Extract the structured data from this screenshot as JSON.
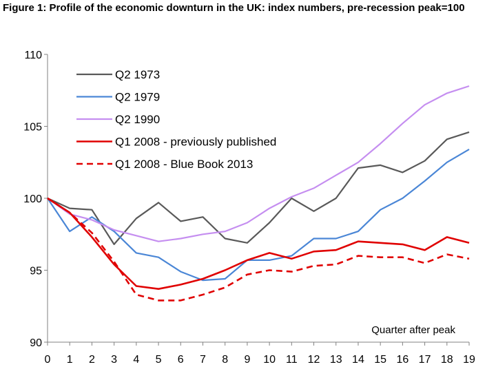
{
  "figure_title": "Figure 1: Profile of the economic downturn in the UK: index numbers, pre-recession peak=100",
  "chart_data": {
    "type": "line",
    "title": "Figure 1: Profile of the economic downturn in the UK: index numbers, pre-recession peak=100",
    "xlabel": "Quarter after peak",
    "ylabel": "",
    "x": [
      0,
      1,
      2,
      3,
      4,
      5,
      6,
      7,
      8,
      9,
      10,
      11,
      12,
      13,
      14,
      15,
      16,
      17,
      18,
      19
    ],
    "xlim": [
      0,
      19
    ],
    "ylim": [
      90,
      110
    ],
    "yticks": [
      90,
      95,
      100,
      105,
      110
    ],
    "grid": false,
    "legend_position": "top-left",
    "annotation": "Quarter after peak",
    "series": [
      {
        "name": "Q2 1973",
        "color": "#595959",
        "dash": "solid",
        "values": [
          100,
          99.3,
          99.2,
          96.8,
          98.6,
          99.7,
          98.4,
          98.7,
          97.2,
          96.9,
          98.3,
          100.0,
          99.1,
          100.0,
          102.1,
          102.3,
          101.8,
          102.6,
          104.1,
          104.6
        ]
      },
      {
        "name": "Q2 1979",
        "color": "#4a86d6",
        "dash": "solid",
        "values": [
          100,
          97.7,
          98.7,
          97.7,
          96.2,
          95.9,
          94.9,
          94.3,
          94.4,
          95.7,
          95.7,
          96.0,
          97.2,
          97.2,
          97.7,
          99.2,
          100.0,
          101.2,
          102.5,
          103.4
        ]
      },
      {
        "name": "Q2 1990",
        "color": "#c58ef0",
        "dash": "solid",
        "values": [
          100,
          98.9,
          98.5,
          97.8,
          97.4,
          97.0,
          97.2,
          97.5,
          97.7,
          98.3,
          99.3,
          100.1,
          100.7,
          101.6,
          102.5,
          103.8,
          105.2,
          106.5,
          107.3,
          107.8
        ]
      },
      {
        "name": "Q1 2008  - previously published",
        "color": "#e00000",
        "dash": "solid",
        "values": [
          100,
          99.0,
          97.3,
          95.4,
          93.9,
          93.7,
          94.0,
          94.4,
          95.0,
          95.7,
          96.2,
          95.8,
          96.3,
          96.4,
          97.0,
          96.9,
          96.8,
          96.4,
          97.3,
          96.9
        ]
      },
      {
        "name": "Q1 2008  - Blue Book 2013",
        "color": "#e00000",
        "dash": "dashed",
        "values": [
          100,
          99.0,
          97.6,
          95.6,
          93.3,
          92.9,
          92.9,
          93.3,
          93.8,
          94.7,
          95.0,
          94.9,
          95.3,
          95.4,
          96.0,
          95.9,
          95.9,
          95.5,
          96.1,
          95.8
        ]
      }
    ]
  }
}
